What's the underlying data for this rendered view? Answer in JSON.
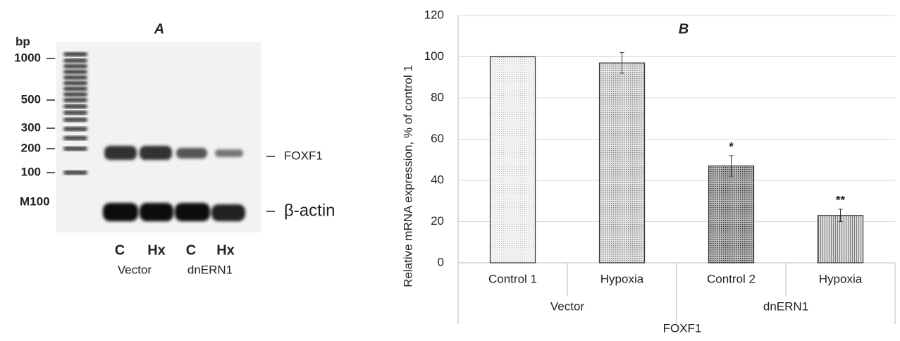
{
  "gel": {
    "title": "A",
    "unit": "bp",
    "size_labels": [
      "1000",
      "500",
      "300",
      "200",
      "100"
    ],
    "marker": "M100",
    "band_labels": [
      "FOXF1",
      "β-actin"
    ],
    "lanes": [
      "C",
      "Hx",
      "C",
      "Hx"
    ],
    "groups": [
      "Vector",
      "dnERN1"
    ]
  },
  "chart_data": {
    "type": "bar",
    "title": "B",
    "ylabel": "Relative mRNA expression, % of control 1",
    "xlabel": "FOXF1",
    "categories": [
      "Control 1",
      "Hypoxia",
      "Control 2",
      "Hypoxia"
    ],
    "groups": [
      "Vector",
      "dnERN1"
    ],
    "values": [
      100,
      97,
      47,
      23
    ],
    "errors": [
      null,
      5,
      5,
      3
    ],
    "significance": [
      null,
      null,
      "*",
      "**"
    ],
    "ylim": [
      0,
      120
    ],
    "yticks": [
      0,
      20,
      40,
      60,
      80,
      100,
      120
    ],
    "grid": true
  }
}
